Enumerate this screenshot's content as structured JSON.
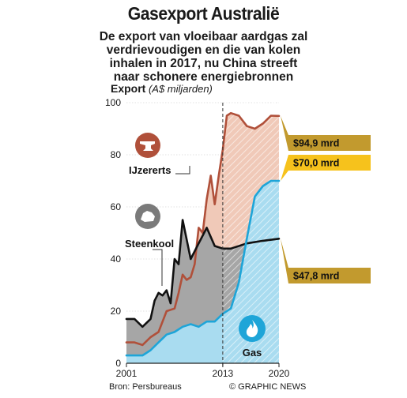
{
  "header": {
    "title": "Gasexport Australië",
    "subtitle_lines": [
      "De export van vloeibaar aardgas zal",
      "verdrievoudigen en die van kolen",
      "inhalen in 2017, nu China streeft",
      "naar schonere energiebronnen"
    ]
  },
  "axis": {
    "ylabel_cap": "Export",
    "ylabel_unit": "(A$ miljarden)",
    "yticks": [
      "0",
      "20",
      "40",
      "60",
      "80",
      "100"
    ],
    "xticks": [
      "2001",
      "2013",
      "2020"
    ]
  },
  "footer": {
    "source": "Bron: Persbureaus",
    "credit": "© GRAPHIC NEWS"
  },
  "labels": {
    "iron": "IJzererts",
    "coal": "Steenkool",
    "gas": "Gas"
  },
  "callouts": {
    "iron": "$94,9 mrd",
    "gas": "$70,0 mrd",
    "coal": "$47,8 mrd"
  },
  "colors": {
    "iron": "#b0503a",
    "iron_fill": "#f0c9b8",
    "coal": "#111111",
    "coal_fill": "#a6a6a6",
    "gas": "#1ea5d8",
    "gas_fill": "#a9dcf0",
    "callout_gold": "#c29a2e",
    "callout_yellow": "#f6c21c"
  },
  "chart_data": {
    "type": "line",
    "ylabel": "Export (A$ miljarden)",
    "ylim": [
      0,
      100
    ],
    "xlim": [
      2001,
      2020
    ],
    "forecast_from": 2013,
    "series": [
      {
        "name": "IJzererts",
        "x": [
          2001,
          2002,
          2003,
          2004,
          2005,
          2005.5,
          2006,
          2007,
          2007.5,
          2008,
          2008.5,
          2009,
          2009.5,
          2010,
          2010.5,
          2011,
          2011.5,
          2012,
          2012.5,
          2013,
          2013.5,
          2014,
          2015,
          2016,
          2017,
          2018,
          2019,
          2020
        ],
        "values": [
          8,
          8,
          7,
          10,
          12,
          16,
          20,
          21,
          27,
          34,
          32,
          33,
          38,
          52,
          50,
          63,
          72,
          61,
          72,
          82,
          95,
          96,
          95,
          91,
          90,
          92,
          95,
          94.9
        ]
      },
      {
        "name": "Steenkool",
        "x": [
          2001,
          2002,
          2003,
          2004,
          2004.5,
          2005,
          2005.5,
          2006,
          2006.5,
          2007,
          2007.5,
          2008,
          2009,
          2010,
          2011,
          2012,
          2013,
          2014,
          2016,
          2018,
          2020
        ],
        "values": [
          17,
          17,
          14,
          17,
          24,
          27,
          26,
          28,
          23,
          40,
          38,
          55,
          40,
          46,
          52,
          45,
          44,
          44,
          46,
          47,
          47.8
        ]
      },
      {
        "name": "Gas",
        "x": [
          2001,
          2002,
          2003,
          2004,
          2005,
          2006,
          2007,
          2008,
          2009,
          2010,
          2011,
          2012,
          2013,
          2014,
          2015,
          2016,
          2017,
          2018,
          2019,
          2020
        ],
        "values": [
          3,
          3,
          3,
          5,
          8,
          11,
          12,
          14,
          15,
          14,
          16,
          16,
          19,
          21,
          31,
          48,
          64,
          68,
          70,
          70
        ]
      }
    ],
    "annotations": [
      "$94,9 mrd",
      "$70,0 mrd",
      "$47,8 mrd"
    ]
  }
}
